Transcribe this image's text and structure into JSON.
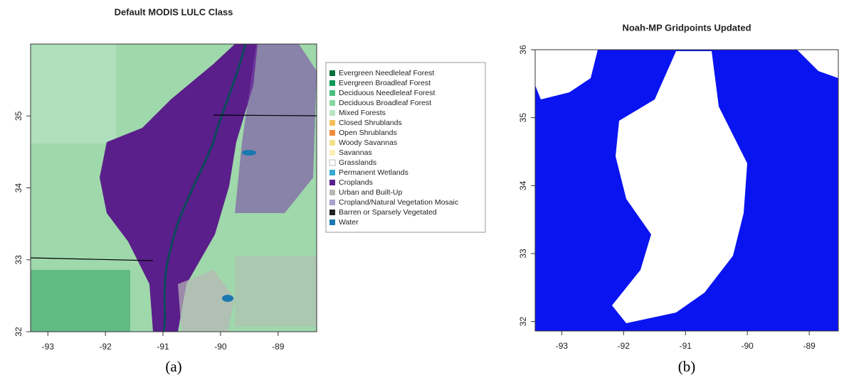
{
  "chart_data": [
    {
      "type": "map",
      "title": "Default MODIS LULC Class",
      "panel_label": "(a)",
      "xlim": [
        -93.3,
        -88.33
      ],
      "ylim": [
        32,
        36
      ],
      "xticks": [
        -93,
        -92,
        -91,
        -90,
        -89
      ],
      "yticks": [
        32,
        33,
        34,
        35
      ],
      "legend": [
        {
          "name": "Evergreen Needleleaf Forest",
          "color": "#00703c"
        },
        {
          "name": "Evergreen Broadleaf Forest",
          "color": "#0a9a55"
        },
        {
          "name": "Deciduous Needleleaf Forest",
          "color": "#4cbf7c"
        },
        {
          "name": "Deciduous Broadleaf Forest",
          "color": "#88d8a0"
        },
        {
          "name": "Mixed Forests",
          "color": "#b8e4c4"
        },
        {
          "name": "Closed Shrublands",
          "color": "#f5c05a"
        },
        {
          "name": "Open Shrublands",
          "color": "#f08a3a"
        },
        {
          "name": "Woody Savannas",
          "color": "#f5e08a"
        },
        {
          "name": "Savannas",
          "color": "#fbeeb8"
        },
        {
          "name": "Grasslands",
          "color": "#ffffff"
        },
        {
          "name": "Permanent Wetlands",
          "color": "#3aa8d0"
        },
        {
          "name": "Croplands",
          "color": "#5a1f8a"
        },
        {
          "name": "Urban and Built-Up",
          "color": "#b8b8b8"
        },
        {
          "name": "Cropland/Natural Vegetation Mosaic",
          "color": "#a8a0cc"
        },
        {
          "name": "Barren or Sparsely Vegetated",
          "color": "#222222"
        },
        {
          "name": "Water",
          "color": "#1a78b0"
        }
      ]
    },
    {
      "type": "map",
      "title": "Noah-MP Gridpoints Updated",
      "panel_label": "(b)",
      "xlim": [
        -93.43,
        -88.53
      ],
      "ylim": [
        31.86,
        36
      ],
      "xticks": [
        -93,
        -92,
        -91,
        -90,
        -89
      ],
      "yticks": [
        32,
        33,
        34,
        35,
        36
      ]
    }
  ]
}
